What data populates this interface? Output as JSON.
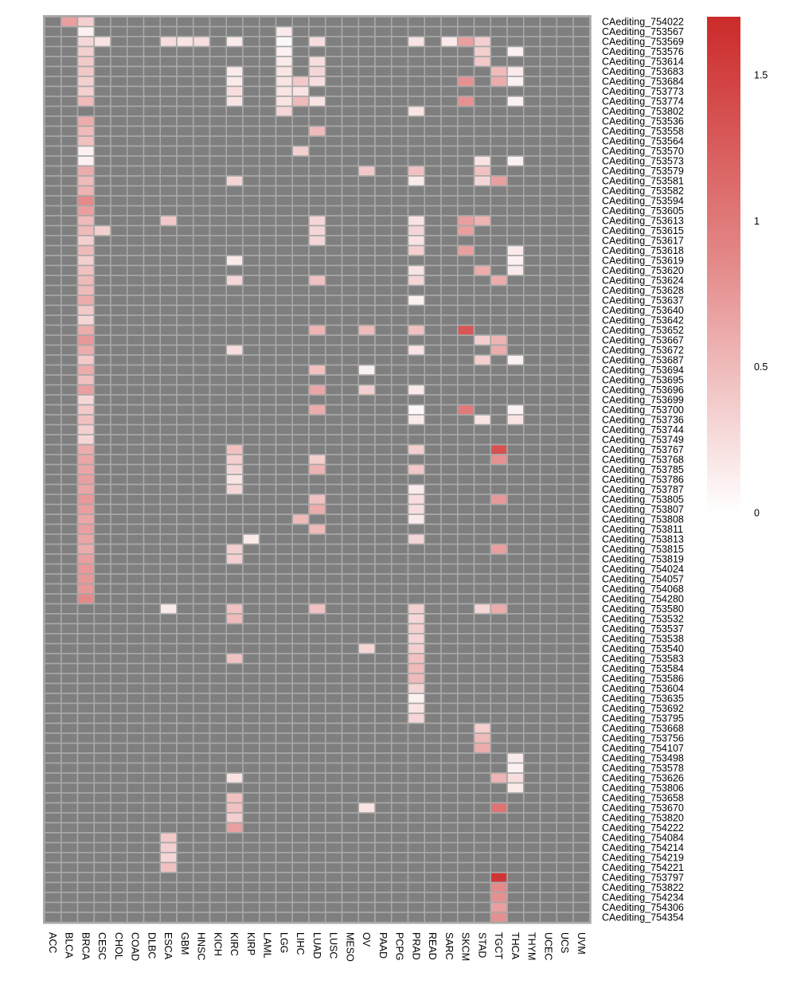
{
  "chart_data": {
    "type": "heatmap",
    "title": "",
    "xlabel": "",
    "ylabel": "",
    "columns": [
      "ACC",
      "BLCA",
      "BRCA",
      "CESC",
      "CHOL",
      "COAD",
      "DLBC",
      "ESCA",
      "GBM",
      "HNSC",
      "KICH",
      "KIRC",
      "KIRP",
      "LAML",
      "LGG",
      "LIHC",
      "LUAD",
      "LUSC",
      "MESO",
      "OV",
      "PAAD",
      "PCPG",
      "PRAD",
      "READ",
      "SARC",
      "SKCM",
      "STAD",
      "TGCT",
      "THCA",
      "THYM",
      "UCEC",
      "UCS",
      "UVM"
    ],
    "rows": [
      "CAediting_754022",
      "CAediting_753567",
      "CAediting_753569",
      "CAediting_753576",
      "CAediting_753614",
      "CAediting_753683",
      "CAediting_753684",
      "CAediting_753773",
      "CAediting_753774",
      "CAediting_753802",
      "CAediting_753536",
      "CAediting_753558",
      "CAediting_753564",
      "CAediting_753570",
      "CAediting_753573",
      "CAediting_753579",
      "CAediting_753581",
      "CAediting_753582",
      "CAediting_753594",
      "CAediting_753605",
      "CAediting_753613",
      "CAediting_753615",
      "CAediting_753617",
      "CAediting_753618",
      "CAediting_753619",
      "CAediting_753620",
      "CAediting_753624",
      "CAediting_753628",
      "CAediting_753637",
      "CAediting_753640",
      "CAediting_753642",
      "CAediting_753652",
      "CAediting_753667",
      "CAediting_753672",
      "CAediting_753687",
      "CAediting_753694",
      "CAediting_753695",
      "CAediting_753696",
      "CAediting_753699",
      "CAediting_753700",
      "CAediting_753736",
      "CAediting_753744",
      "CAediting_753749",
      "CAediting_753767",
      "CAediting_753768",
      "CAediting_753785",
      "CAediting_753786",
      "CAediting_753787",
      "CAediting_753805",
      "CAediting_753807",
      "CAediting_753808",
      "CAediting_753811",
      "CAediting_753813",
      "CAediting_753815",
      "CAediting_753819",
      "CAediting_754024",
      "CAediting_754057",
      "CAediting_754068",
      "CAediting_754280",
      "CAediting_753580",
      "CAediting_753532",
      "CAediting_753537",
      "CAediting_753538",
      "CAediting_753540",
      "CAediting_753583",
      "CAediting_753584",
      "CAediting_753586",
      "CAediting_753604",
      "CAediting_753635",
      "CAediting_753692",
      "CAediting_753795",
      "CAediting_753668",
      "CAediting_753756",
      "CAediting_754107",
      "CAediting_753498",
      "CAediting_753578",
      "CAediting_753626",
      "CAediting_753806",
      "CAediting_753658",
      "CAediting_753670",
      "CAediting_753820",
      "CAediting_754222",
      "CAediting_754084",
      "CAediting_754214",
      "CAediting_754219",
      "CAediting_754221",
      "CAediting_753797",
      "CAediting_753822",
      "CAediting_754234",
      "CAediting_754306",
      "CAediting_754354"
    ],
    "cells": [
      [
        0,
        1,
        0.7
      ],
      [
        0,
        2,
        0.35
      ],
      [
        1,
        2,
        0.1
      ],
      [
        1,
        14,
        0.15
      ],
      [
        2,
        2,
        0.3
      ],
      [
        2,
        3,
        0.2
      ],
      [
        2,
        7,
        0.25
      ],
      [
        2,
        8,
        0.2
      ],
      [
        2,
        9,
        0.25
      ],
      [
        2,
        11,
        0.15
      ],
      [
        2,
        14,
        0.05
      ],
      [
        2,
        16,
        0.25
      ],
      [
        2,
        22,
        0.2
      ],
      [
        2,
        24,
        0.15
      ],
      [
        2,
        25,
        0.7
      ],
      [
        2,
        26,
        0.35
      ],
      [
        3,
        2,
        0.35
      ],
      [
        3,
        14,
        0.1
      ],
      [
        3,
        26,
        0.35
      ],
      [
        3,
        28,
        0.1
      ],
      [
        4,
        2,
        0.4
      ],
      [
        4,
        14,
        0.15
      ],
      [
        4,
        16,
        0.25
      ],
      [
        4,
        26,
        0.4
      ],
      [
        5,
        2,
        0.4
      ],
      [
        5,
        11,
        0.15
      ],
      [
        5,
        14,
        0.2
      ],
      [
        5,
        16,
        0.3
      ],
      [
        5,
        27,
        0.5
      ],
      [
        5,
        28,
        0.15
      ],
      [
        6,
        2,
        0.35
      ],
      [
        6,
        11,
        0.15
      ],
      [
        6,
        14,
        0.2
      ],
      [
        6,
        15,
        0.4
      ],
      [
        6,
        16,
        0.25
      ],
      [
        6,
        25,
        0.8
      ],
      [
        6,
        27,
        0.6
      ],
      [
        6,
        28,
        0.1
      ],
      [
        7,
        2,
        0.35
      ],
      [
        7,
        11,
        0.25
      ],
      [
        7,
        14,
        0.2
      ],
      [
        7,
        15,
        0.2
      ],
      [
        8,
        2,
        0.5
      ],
      [
        8,
        11,
        0.2
      ],
      [
        8,
        14,
        0.2
      ],
      [
        8,
        15,
        0.5
      ],
      [
        8,
        16,
        0.2
      ],
      [
        8,
        25,
        0.8
      ],
      [
        8,
        28,
        0.1
      ],
      [
        9,
        14,
        0.3
      ],
      [
        9,
        22,
        0.2
      ],
      [
        10,
        2,
        0.6
      ],
      [
        11,
        2,
        0.5
      ],
      [
        11,
        16,
        0.5
      ],
      [
        12,
        2,
        0.45
      ],
      [
        13,
        2,
        0.1
      ],
      [
        13,
        15,
        0.35
      ],
      [
        14,
        2,
        0.1
      ],
      [
        14,
        26,
        0.2
      ],
      [
        14,
        28,
        0.1
      ],
      [
        15,
        2,
        0.6
      ],
      [
        15,
        19,
        0.4
      ],
      [
        15,
        22,
        0.45
      ],
      [
        15,
        26,
        0.45
      ],
      [
        16,
        2,
        0.5
      ],
      [
        16,
        11,
        0.3
      ],
      [
        16,
        22,
        0.15
      ],
      [
        16,
        26,
        0.3
      ],
      [
        16,
        27,
        0.7
      ],
      [
        17,
        2,
        0.55
      ],
      [
        18,
        2,
        0.85
      ],
      [
        19,
        2,
        0.7
      ],
      [
        20,
        2,
        0.5
      ],
      [
        20,
        7,
        0.4
      ],
      [
        20,
        16,
        0.3
      ],
      [
        20,
        22,
        0.2
      ],
      [
        20,
        25,
        0.7
      ],
      [
        20,
        26,
        0.55
      ],
      [
        21,
        2,
        0.5
      ],
      [
        21,
        3,
        0.35
      ],
      [
        21,
        16,
        0.3
      ],
      [
        21,
        22,
        0.3
      ],
      [
        21,
        25,
        0.7
      ],
      [
        22,
        2,
        0.35
      ],
      [
        22,
        16,
        0.3
      ],
      [
        22,
        22,
        0.2
      ],
      [
        23,
        2,
        0.5
      ],
      [
        23,
        22,
        0.35
      ],
      [
        23,
        25,
        0.7
      ],
      [
        23,
        28,
        0.15
      ],
      [
        24,
        2,
        0.35
      ],
      [
        24,
        11,
        0.15
      ],
      [
        24,
        28,
        0.1
      ],
      [
        25,
        2,
        0.45
      ],
      [
        25,
        22,
        0.2
      ],
      [
        25,
        26,
        0.6
      ],
      [
        25,
        28,
        0.15
      ],
      [
        26,
        2,
        0.5
      ],
      [
        26,
        11,
        0.3
      ],
      [
        26,
        16,
        0.45
      ],
      [
        26,
        22,
        0.3
      ],
      [
        26,
        27,
        0.6
      ],
      [
        27,
        2,
        0.5
      ],
      [
        28,
        2,
        0.6
      ],
      [
        28,
        22,
        0.1
      ],
      [
        29,
        2,
        0.4
      ],
      [
        30,
        2,
        0.3
      ],
      [
        31,
        2,
        0.6
      ],
      [
        31,
        16,
        0.55
      ],
      [
        31,
        19,
        0.5
      ],
      [
        31,
        22,
        0.45
      ],
      [
        31,
        25,
        1.3
      ],
      [
        32,
        2,
        0.75
      ],
      [
        32,
        26,
        0.35
      ],
      [
        32,
        27,
        0.55
      ],
      [
        33,
        2,
        0.6
      ],
      [
        33,
        11,
        0.25
      ],
      [
        33,
        22,
        0.2
      ],
      [
        33,
        27,
        0.6
      ],
      [
        34,
        2,
        0.4
      ],
      [
        34,
        26,
        0.35
      ],
      [
        34,
        28,
        0.1
      ],
      [
        35,
        2,
        0.6
      ],
      [
        35,
        16,
        0.45
      ],
      [
        35,
        19,
        0.1
      ],
      [
        36,
        2,
        0.45
      ],
      [
        37,
        2,
        0.7
      ],
      [
        37,
        16,
        0.65
      ],
      [
        37,
        19,
        0.35
      ],
      [
        37,
        22,
        0.15
      ],
      [
        38,
        2,
        0.3
      ],
      [
        39,
        2,
        0.4
      ],
      [
        39,
        16,
        0.6
      ],
      [
        39,
        22,
        0.05
      ],
      [
        39,
        25,
        1.0
      ],
      [
        39,
        28,
        0.1
      ],
      [
        40,
        2,
        0.45
      ],
      [
        40,
        22,
        0.15
      ],
      [
        40,
        26,
        0.2
      ],
      [
        40,
        28,
        0.2
      ],
      [
        41,
        2,
        0.35
      ],
      [
        42,
        2,
        0.3
      ],
      [
        43,
        2,
        0.6
      ],
      [
        43,
        11,
        0.45
      ],
      [
        43,
        22,
        0.35
      ],
      [
        43,
        27,
        1.35
      ],
      [
        44,
        2,
        0.65
      ],
      [
        44,
        11,
        0.35
      ],
      [
        44,
        16,
        0.35
      ],
      [
        44,
        27,
        0.8
      ],
      [
        45,
        2,
        0.65
      ],
      [
        45,
        11,
        0.3
      ],
      [
        45,
        16,
        0.55
      ],
      [
        45,
        22,
        0.4
      ],
      [
        46,
        2,
        0.7
      ],
      [
        46,
        11,
        0.2
      ],
      [
        47,
        2,
        0.65
      ],
      [
        47,
        11,
        0.3
      ],
      [
        47,
        22,
        0.15
      ],
      [
        48,
        2,
        0.75
      ],
      [
        48,
        16,
        0.45
      ],
      [
        48,
        22,
        0.25
      ],
      [
        48,
        27,
        0.75
      ],
      [
        49,
        2,
        0.7
      ],
      [
        49,
        16,
        0.6
      ],
      [
        49,
        22,
        0.25
      ],
      [
        50,
        2,
        0.65
      ],
      [
        50,
        15,
        0.5
      ],
      [
        50,
        22,
        0.15
      ],
      [
        51,
        2,
        0.7
      ],
      [
        51,
        16,
        0.5
      ],
      [
        52,
        2,
        0.65
      ],
      [
        52,
        12,
        0.15
      ],
      [
        52,
        22,
        0.3
      ],
      [
        53,
        2,
        0.6
      ],
      [
        53,
        11,
        0.35
      ],
      [
        53,
        27,
        0.7
      ],
      [
        54,
        2,
        0.7
      ],
      [
        54,
        11,
        0.35
      ],
      [
        55,
        2,
        0.75
      ],
      [
        56,
        2,
        0.75
      ],
      [
        57,
        2,
        0.75
      ],
      [
        58,
        2,
        0.85
      ],
      [
        59,
        7,
        0.15
      ],
      [
        59,
        11,
        0.45
      ],
      [
        59,
        16,
        0.45
      ],
      [
        59,
        22,
        0.35
      ],
      [
        59,
        26,
        0.3
      ],
      [
        59,
        27,
        0.6
      ],
      [
        60,
        11,
        0.5
      ],
      [
        60,
        22,
        0.3
      ],
      [
        61,
        22,
        0.35
      ],
      [
        62,
        22,
        0.3
      ],
      [
        63,
        19,
        0.3
      ],
      [
        63,
        22,
        0.35
      ],
      [
        64,
        11,
        0.45
      ],
      [
        64,
        22,
        0.45
      ],
      [
        65,
        22,
        0.5
      ],
      [
        66,
        22,
        0.5
      ],
      [
        67,
        22,
        0.3
      ],
      [
        68,
        22,
        0.1
      ],
      [
        69,
        22,
        0.2
      ],
      [
        70,
        22,
        0.3
      ],
      [
        71,
        26,
        0.35
      ],
      [
        72,
        26,
        0.5
      ],
      [
        73,
        26,
        0.6
      ],
      [
        74,
        28,
        0.15
      ],
      [
        75,
        28,
        0.1
      ],
      [
        76,
        11,
        0.2
      ],
      [
        76,
        27,
        0.55
      ],
      [
        76,
        28,
        0.25
      ],
      [
        77,
        28,
        0.15
      ],
      [
        78,
        11,
        0.45
      ],
      [
        79,
        11,
        0.45
      ],
      [
        79,
        19,
        0.2
      ],
      [
        79,
        27,
        1.05
      ],
      [
        80,
        11,
        0.35
      ],
      [
        81,
        11,
        0.7
      ],
      [
        82,
        7,
        0.4
      ],
      [
        83,
        7,
        0.35
      ],
      [
        84,
        7,
        0.3
      ],
      [
        85,
        7,
        0.45
      ],
      [
        86,
        27,
        1.6
      ],
      [
        87,
        27,
        0.85
      ],
      [
        88,
        27,
        0.8
      ],
      [
        89,
        27,
        0.7
      ],
      [
        90,
        27,
        0.8
      ]
    ],
    "colorbar": {
      "min": 0,
      "max": 1.7,
      "ticks": [
        "0",
        "0.5",
        "1",
        "1.5"
      ],
      "colors": [
        "#ffffff",
        "#e48a8a",
        "#cc2a2a"
      ]
    },
    "na_color": "#7f7f7f",
    "grid_color": "#a8a8a8"
  }
}
